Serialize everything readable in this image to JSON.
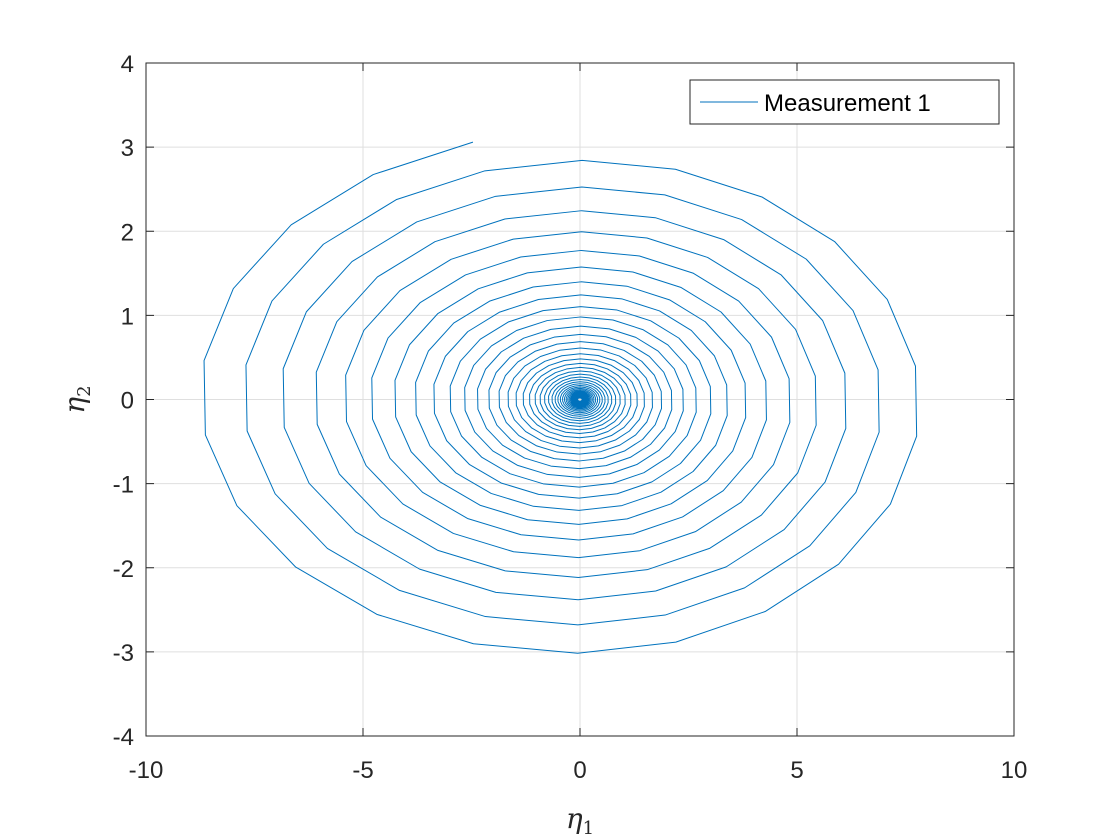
{
  "chart_data": {
    "type": "line",
    "title": "",
    "xlabel": "η1",
    "ylabel": "η2",
    "xlabel_parts": {
      "base": "η",
      "sub": "1"
    },
    "ylabel_parts": {
      "base": "η",
      "sub": "2"
    },
    "xlim": [
      -10,
      10
    ],
    "ylim": [
      -4,
      4
    ],
    "xticks": [
      -10,
      -5,
      0,
      5,
      10
    ],
    "yticks": [
      -4,
      -3,
      -2,
      -1,
      0,
      1,
      2,
      3,
      4
    ],
    "xtick_labels": [
      "-10",
      "-5",
      "0",
      "5",
      "10"
    ],
    "ytick_labels": [
      "-4",
      "-3",
      "-2",
      "-1",
      "0",
      "1",
      "2",
      "3",
      "4"
    ],
    "grid": true,
    "box": true,
    "legend": {
      "position": "top-right",
      "entries": [
        "Measurement 1"
      ]
    },
    "series": [
      {
        "name": "Measurement 1",
        "color": "#0072BD",
        "description_points": {
          "start": [
            -0.9,
            3.19
          ],
          "end": [
            0.0,
            0.0
          ],
          "turns": 44,
          "samples_per_turn": 22,
          "max_extent_x": [
            -8.95,
            8.5
          ],
          "max_extent_y": [
            -3.12,
            3.19
          ]
        }
      }
    ]
  }
}
